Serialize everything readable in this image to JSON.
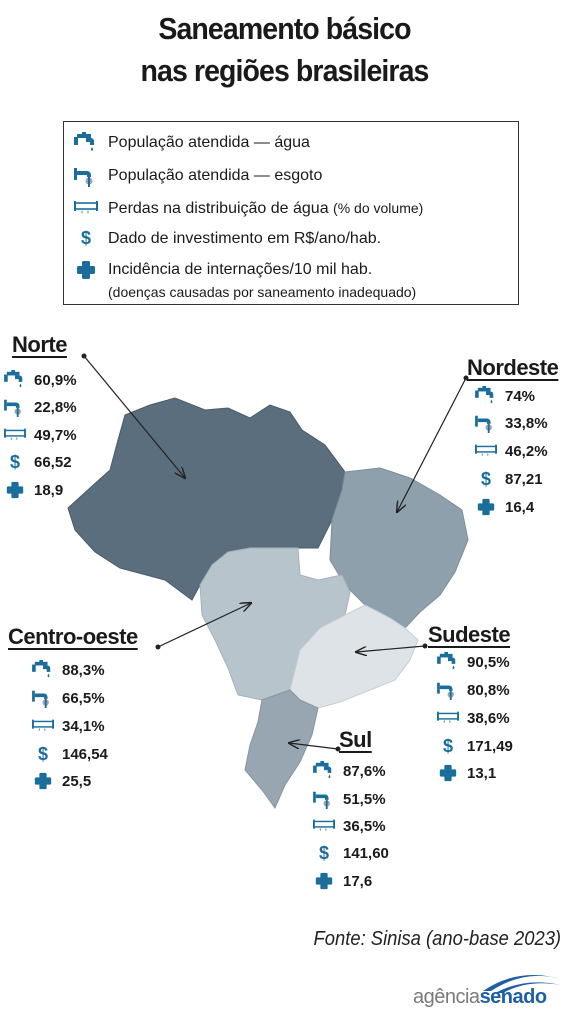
{
  "title": {
    "line1": "Saneamento básico",
    "line2": "nas regiões brasileiras"
  },
  "legend": {
    "water": "População atendida — água",
    "sewage": "População atendida — esgoto",
    "losses": "Perdas na distribuição de água",
    "losses_note": "(% do volume)",
    "investment": "Dado de investimento em R$/ano/hab.",
    "hospital": "Incidência de internações/10 mil hab.",
    "hospital_note": "(doenças causadas por saneamento inadequado)",
    "dollar_symbol": "$"
  },
  "regions": {
    "norte": {
      "name": "Norte",
      "water": "60,9%",
      "sewage": "22,8%",
      "losses": "49,7%",
      "investment": "66,52",
      "hospital": "18,9"
    },
    "nordeste": {
      "name": "Nordeste",
      "water": "74%",
      "sewage": "33,8%",
      "losses": "46,2%",
      "investment": "87,21",
      "hospital": "16,4"
    },
    "centro_oeste": {
      "name": "Centro-oeste",
      "water": "88,3%",
      "sewage": "66,5%",
      "losses": "34,1%",
      "investment": "146,54",
      "hospital": "25,5"
    },
    "sudeste": {
      "name": "Sudeste",
      "water": "90,5%",
      "sewage": "80,8%",
      "losses": "38,6%",
      "investment": "171,49",
      "hospital": "13,1"
    },
    "sul": {
      "name": "Sul",
      "water": "87,6%",
      "sewage": "51,5%",
      "losses": "36,5%",
      "investment": "141,60",
      "hospital": "17,6"
    }
  },
  "source": "Fonte: Sinisa (ano-base 2023)",
  "logo": {
    "part1": "agência",
    "part2": "senado"
  },
  "colors": {
    "icon": "#1b6e9c",
    "norte": "#5b6e7e",
    "nordeste": "#8fa0ad",
    "centro_oeste": "#b8c4cc",
    "sudeste": "#dde3e7",
    "sul": "#97a6b1",
    "brand": "#1d5ea6"
  }
}
